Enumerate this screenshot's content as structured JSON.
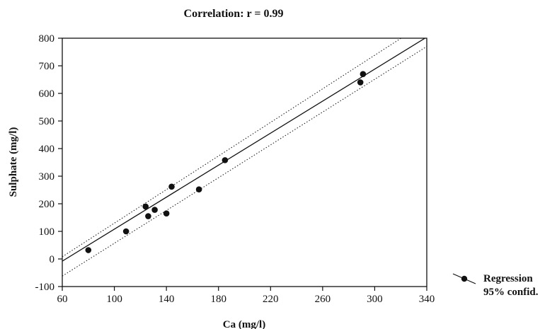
{
  "chart_data": {
    "type": "scatter",
    "title": "Correlation: r = 0.99",
    "xlabel": "Ca (mg/l)",
    "ylabel": "Sulphate (mg/l)",
    "xlim": [
      60,
      340
    ],
    "ylim": [
      -100,
      800
    ],
    "x_ticks": [
      60,
      100,
      140,
      180,
      220,
      260,
      300,
      340
    ],
    "y_ticks": [
      -100,
      0,
      100,
      200,
      300,
      400,
      500,
      600,
      700,
      800
    ],
    "grid": false,
    "series": [
      {
        "name": "Regression",
        "type": "scatter",
        "x": [
          80,
          109,
          124,
          126,
          131,
          140,
          144,
          165,
          185,
          289,
          291
        ],
        "y": [
          32,
          100,
          190,
          155,
          178,
          165,
          262,
          252,
          358,
          640,
          670
        ]
      }
    ],
    "regression": {
      "intercept": -182,
      "slope": 2.9
    },
    "confidence_band": {
      "level": "95% confid.",
      "upper": [
        [
          60,
          8
        ],
        [
          340,
          860
        ]
      ],
      "lower": [
        [
          60,
          -62
        ],
        [
          340,
          770
        ]
      ]
    },
    "legend": {
      "position": "bottom-right",
      "entries": [
        "Regression",
        "95% confid."
      ]
    },
    "colors": {
      "marks": "#111111",
      "background": "#ffffff"
    }
  }
}
